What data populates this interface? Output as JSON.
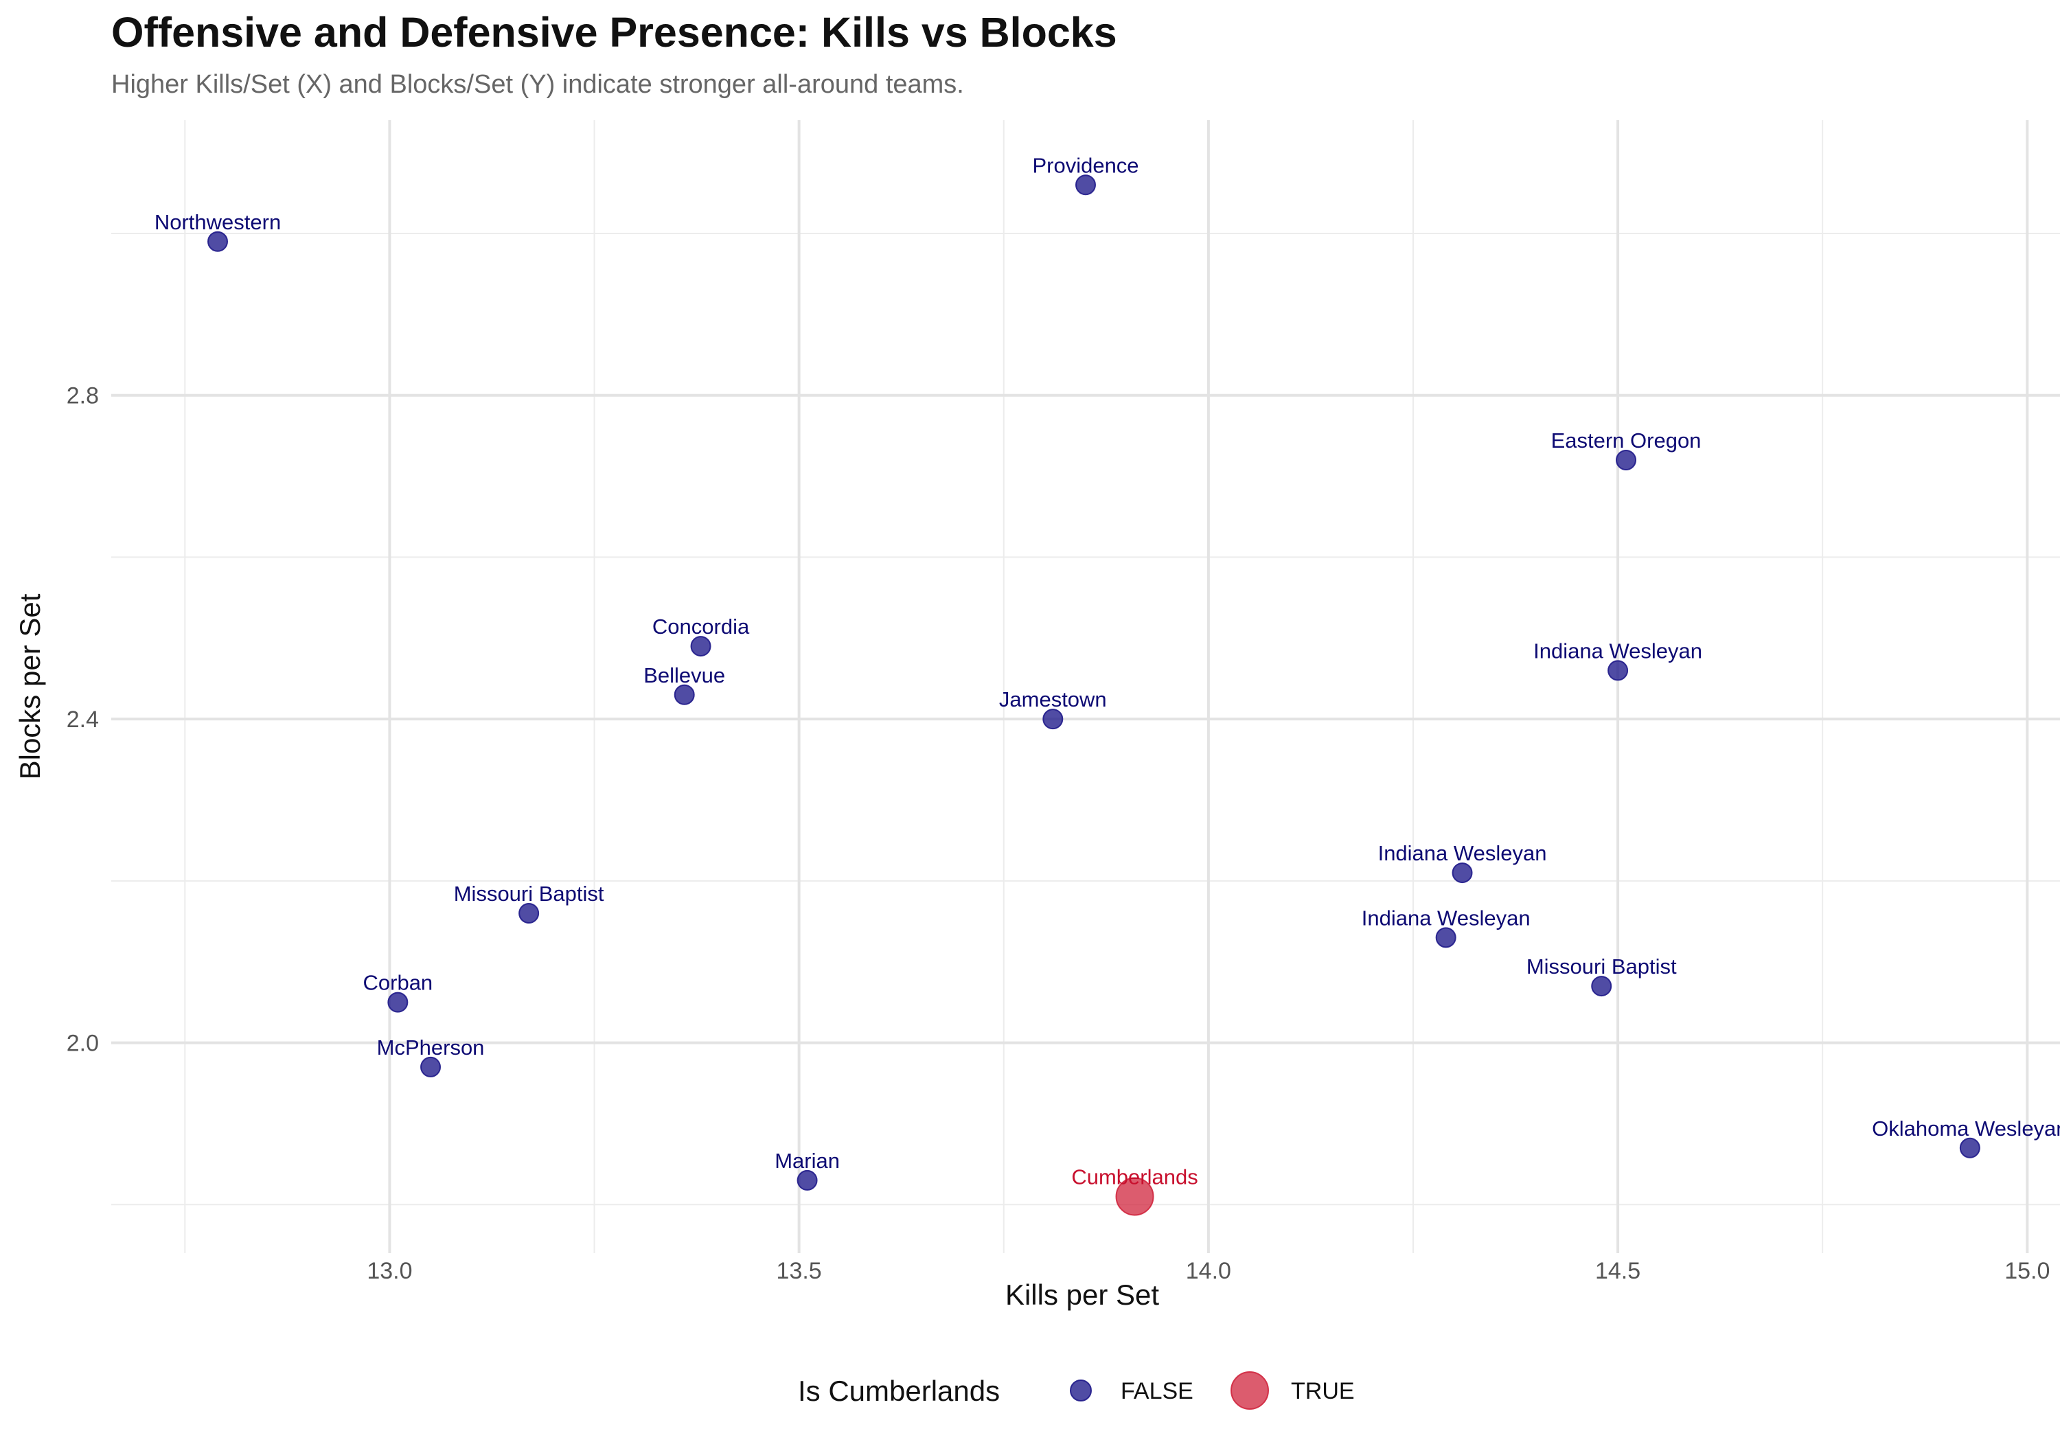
{
  "chart_data": {
    "type": "scatter",
    "title": "Offensive and Defensive Presence: Kills vs Blocks",
    "subtitle": "Higher Kills/Set (X) and Blocks/Set (Y) indicate stronger all-around teams.",
    "xlabel": "Kills per Set",
    "ylabel": "Blocks per Set",
    "xlim": [
      12.66,
      15.04
    ],
    "ylim": [
      1.74,
      3.14
    ],
    "x_ticks": [
      13.0,
      13.5,
      14.0,
      14.5,
      15.0
    ],
    "x_tick_labels": [
      "13.0",
      "13.5",
      "14.0",
      "14.5",
      "15.0"
    ],
    "y_ticks": [
      2.0,
      2.4,
      2.8
    ],
    "y_tick_labels": [
      "2.0",
      "2.4",
      "2.8"
    ],
    "grid": true,
    "legend": {
      "title": "Is Cumberlands",
      "position": "bottom",
      "entries": [
        {
          "label": "FALSE",
          "color": "#1f1a8a"
        },
        {
          "label": "TRUE",
          "color": "#d0263e"
        }
      ]
    },
    "colors": {
      "false": "#1f1a8a",
      "true": "#d0263e",
      "label_false": "#0d0a73",
      "label_true": "#c8102e"
    },
    "points": [
      {
        "label": "Northwestern",
        "x": 12.79,
        "y": 2.99,
        "is_cumberlands": false
      },
      {
        "label": "Providence",
        "x": 13.85,
        "y": 3.06,
        "is_cumberlands": false
      },
      {
        "label": "Eastern Oregon",
        "x": 14.51,
        "y": 2.72,
        "is_cumberlands": false
      },
      {
        "label": "Concordia",
        "x": 13.38,
        "y": 2.49,
        "is_cumberlands": false
      },
      {
        "label": "Bellevue",
        "x": 13.36,
        "y": 2.43,
        "is_cumberlands": false
      },
      {
        "label": "Jamestown",
        "x": 13.81,
        "y": 2.4,
        "is_cumberlands": false
      },
      {
        "label": "Indiana Wesleyan",
        "x": 14.5,
        "y": 2.46,
        "is_cumberlands": false
      },
      {
        "label": "Indiana Wesleyan",
        "x": 14.31,
        "y": 2.21,
        "is_cumberlands": false
      },
      {
        "label": "Indiana Wesleyan",
        "x": 14.29,
        "y": 2.13,
        "is_cumberlands": false
      },
      {
        "label": "Missouri Baptist",
        "x": 13.17,
        "y": 2.16,
        "is_cumberlands": false
      },
      {
        "label": "Missouri Baptist",
        "x": 14.48,
        "y": 2.07,
        "is_cumberlands": false
      },
      {
        "label": "Corban",
        "x": 13.01,
        "y": 2.05,
        "is_cumberlands": false
      },
      {
        "label": "McPherson",
        "x": 13.05,
        "y": 1.97,
        "is_cumberlands": false
      },
      {
        "label": "Marian",
        "x": 13.51,
        "y": 1.83,
        "is_cumberlands": false
      },
      {
        "label": "Cumberlands",
        "x": 13.91,
        "y": 1.81,
        "is_cumberlands": true
      },
      {
        "label": "Oklahoma Wesleyan",
        "x": 14.93,
        "y": 1.87,
        "is_cumberlands": false
      }
    ]
  }
}
